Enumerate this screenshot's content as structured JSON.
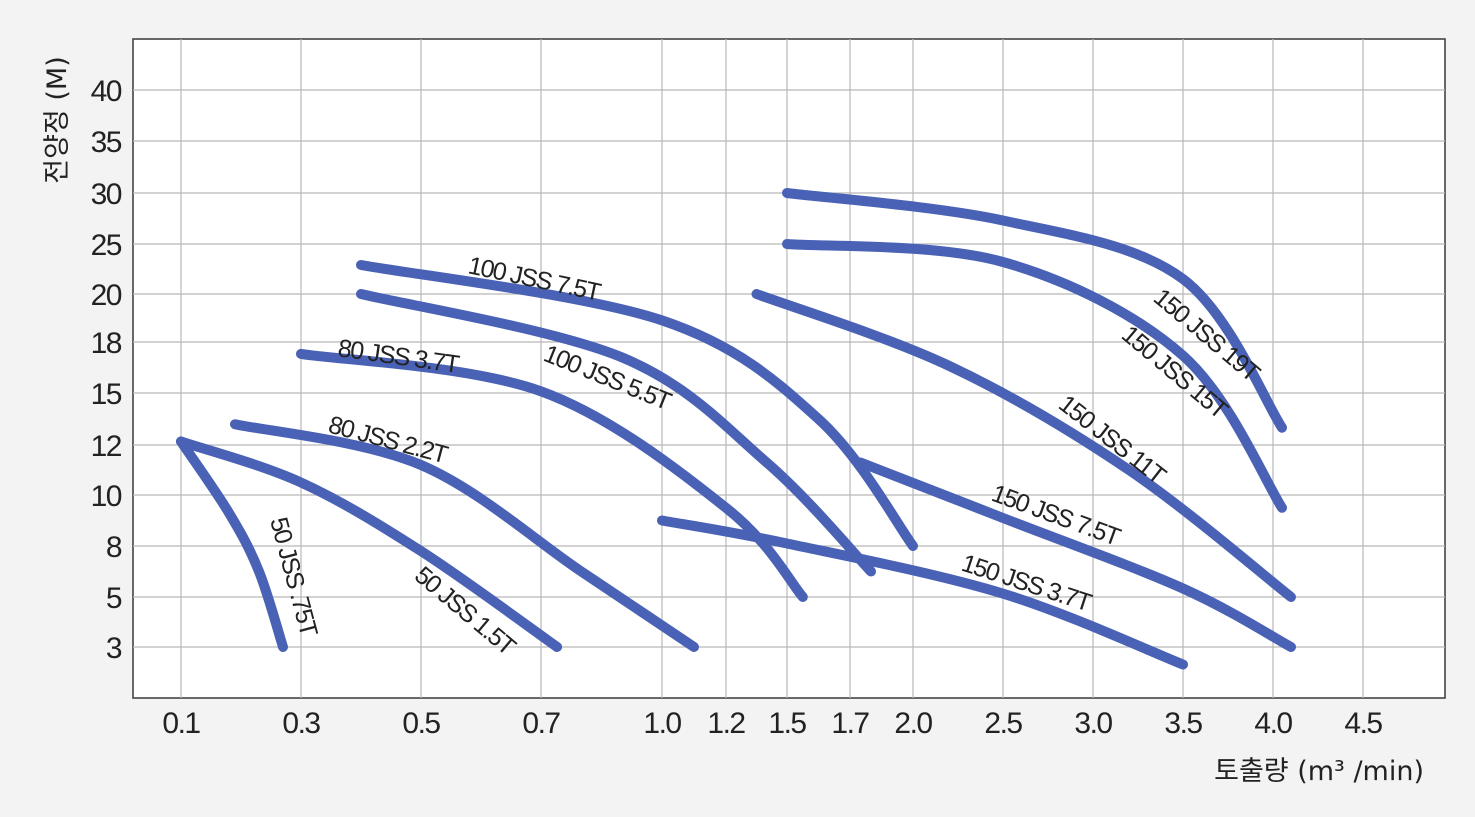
{
  "chart_data": {
    "type": "line",
    "xlabel": "토출량 (m³ /min)",
    "ylabel": "전양정 (M)",
    "x_ticks": [
      "0.1",
      "0.3",
      "0.5",
      "0.7",
      "1.0",
      "1.2",
      "1.5",
      "1.7",
      "2.0",
      "2.5",
      "3.0",
      "3.5",
      "4.0",
      "4.5"
    ],
    "y_ticks": [
      "3",
      "5",
      "8",
      "10",
      "12",
      "15",
      "18",
      "20",
      "25",
      "30",
      "35",
      "40"
    ],
    "grid": true,
    "legend": "none (labels on curves)",
    "curve_color": "#4a62b6",
    "series": [
      {
        "name": "50 JSS .75T",
        "points": [
          [
            0.1,
            12.2
          ],
          [
            0.18,
            9.3
          ],
          [
            0.23,
            6.5
          ],
          [
            0.27,
            3.0
          ]
        ]
      },
      {
        "name": "50 JSS 1.5T",
        "points": [
          [
            0.1,
            12.2
          ],
          [
            0.3,
            10.5
          ],
          [
            0.5,
            7.7
          ],
          [
            0.74,
            3.0
          ]
        ]
      },
      {
        "name": "80 JSS 2.2T",
        "points": [
          [
            0.19,
            13.2
          ],
          [
            0.5,
            11.2
          ],
          [
            0.8,
            6.5
          ],
          [
            1.1,
            3.0
          ]
        ]
      },
      {
        "name": "80 JSS 3.7T",
        "points": [
          [
            0.3,
            17.3
          ],
          [
            0.7,
            15.1
          ],
          [
            1.2,
            9.5
          ],
          [
            1.55,
            5.0
          ]
        ]
      },
      {
        "name": "100 JSS 5.5T",
        "points": [
          [
            0.4,
            20.0
          ],
          [
            0.9,
            17.1
          ],
          [
            1.4,
            11.3
          ],
          [
            1.8,
            6.5
          ]
        ]
      },
      {
        "name": "100 JSS 7.5T",
        "points": [
          [
            0.4,
            22.9
          ],
          [
            1.0,
            18.9
          ],
          [
            1.6,
            13.5
          ],
          [
            2.0,
            8.0
          ]
        ]
      },
      {
        "name": "150 JSS 3.7T",
        "points": [
          [
            1.0,
            9.0
          ],
          [
            1.5,
            8.1
          ],
          [
            2.5,
            5.2
          ],
          [
            3.5,
            2.3
          ]
        ]
      },
      {
        "name": "150 JSS 7.5T",
        "points": [
          [
            1.75,
            11.3
          ],
          [
            2.5,
            9.1
          ],
          [
            3.5,
            5.5
          ],
          [
            4.1,
            3.0
          ]
        ]
      },
      {
        "name": "150 JSS 11T",
        "points": [
          [
            1.35,
            20.0
          ],
          [
            2.2,
            16.6
          ],
          [
            3.2,
            11.0
          ],
          [
            4.1,
            5.0
          ]
        ]
      },
      {
        "name": "150 JSS 15T",
        "points": [
          [
            1.5,
            25.0
          ],
          [
            2.5,
            23.2
          ],
          [
            3.5,
            17.2
          ],
          [
            4.05,
            9.5
          ]
        ]
      },
      {
        "name": "150 JSS 19T",
        "points": [
          [
            1.5,
            30.0
          ],
          [
            2.5,
            27.3
          ],
          [
            3.5,
            21.5
          ],
          [
            4.05,
            13.0
          ]
        ]
      }
    ]
  }
}
